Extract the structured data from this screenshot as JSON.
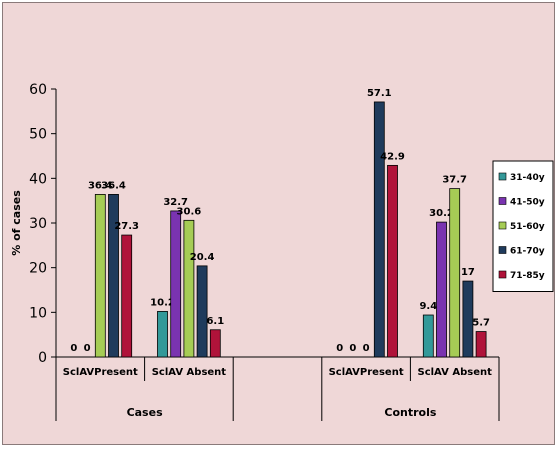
{
  "chart_data": {
    "type": "bar",
    "ylabel": "% of cases",
    "ylim": [
      0,
      60
    ],
    "yticks": [
      "0",
      "10",
      "20",
      "30",
      "40",
      "50",
      "60"
    ],
    "groups": [
      {
        "label": "Cases",
        "categories": [
          "SclAVPresent",
          "SclAV Absent"
        ]
      },
      {
        "label": "Controls",
        "categories": [
          "SclAVPresent",
          "SclAV Absent"
        ]
      }
    ],
    "categories": [
      "SclAVPresent",
      "SclAV Absent",
      "",
      "SclAVPresent",
      "SclAV Absent"
    ],
    "series": [
      {
        "name": "31-40y",
        "color": "#339999",
        "values": [
          0,
          10.2,
          null,
          0,
          9.4
        ]
      },
      {
        "name": "41-50y",
        "color": "#7a33b0",
        "values": [
          0,
          32.7,
          null,
          0,
          30.2
        ]
      },
      {
        "name": "51-60y",
        "color": "#a6cc55",
        "values": [
          36.4,
          30.6,
          null,
          0,
          37.7
        ]
      },
      {
        "name": "61-70y",
        "color": "#1f3b5c",
        "values": [
          36.4,
          20.4,
          null,
          57.1,
          17
        ]
      },
      {
        "name": "71-85y",
        "color": "#b0133a",
        "values": [
          27.3,
          6.1,
          null,
          42.9,
          5.7
        ]
      }
    ],
    "data_labels": [
      [
        "0",
        "10.2",
        null,
        "0",
        "9.4"
      ],
      [
        "0",
        "32.7",
        null,
        "0",
        "30.2"
      ],
      [
        "36.4",
        "30.6",
        null,
        "0",
        "37.7"
      ],
      [
        "36.4",
        "20.4",
        null,
        "57.1",
        "17"
      ],
      [
        "27.3",
        "6.1",
        null,
        "42.9",
        "5.7"
      ]
    ],
    "legend_position": "right",
    "grid": false
  }
}
